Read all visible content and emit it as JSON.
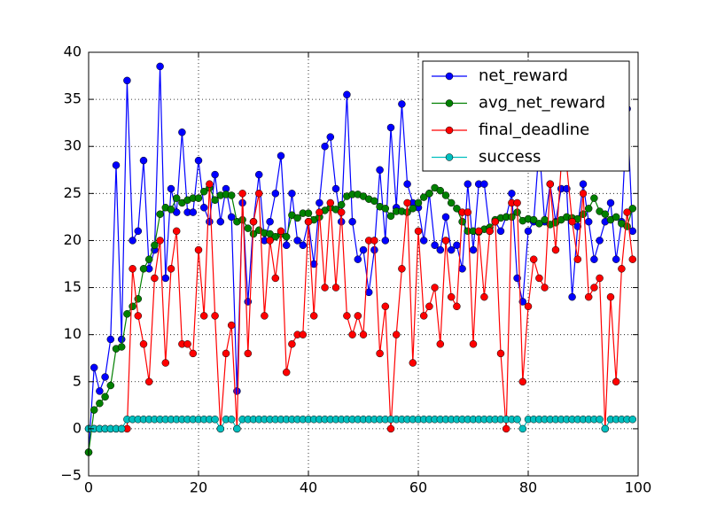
{
  "chart_data": {
    "type": "line",
    "x": [
      0,
      1,
      2,
      3,
      4,
      5,
      6,
      7,
      8,
      9,
      10,
      11,
      12,
      13,
      14,
      15,
      16,
      17,
      18,
      19,
      20,
      21,
      22,
      23,
      24,
      25,
      26,
      27,
      28,
      29,
      30,
      31,
      32,
      33,
      34,
      35,
      36,
      37,
      38,
      39,
      40,
      41,
      42,
      43,
      44,
      45,
      46,
      47,
      48,
      49,
      50,
      51,
      52,
      53,
      54,
      55,
      56,
      57,
      58,
      59,
      60,
      61,
      62,
      63,
      64,
      65,
      66,
      67,
      68,
      69,
      70,
      71,
      72,
      73,
      74,
      75,
      76,
      77,
      78,
      79,
      80,
      81,
      82,
      83,
      84,
      85,
      86,
      87,
      88,
      89,
      90,
      91,
      92,
      93,
      94,
      95,
      96,
      97,
      98,
      99
    ],
    "series": [
      {
        "name": "net_reward",
        "color": "#0000ff",
        "values": [
          -2.5,
          6.5,
          4,
          5.5,
          9.5,
          28,
          9.5,
          37,
          20,
          21,
          28.5,
          17,
          19,
          38.5,
          16,
          25.5,
          23,
          31.5,
          23,
          23,
          28.5,
          23.5,
          22,
          27,
          22,
          25.5,
          22.5,
          4,
          24,
          13.5,
          22,
          27,
          20,
          22,
          25,
          29,
          19.5,
          25,
          20,
          19.5,
          22,
          17.5,
          24,
          30,
          31,
          25.5,
          22,
          35.5,
          22,
          18,
          19,
          14.5,
          19,
          27.5,
          20,
          32,
          23.5,
          34.5,
          26,
          24,
          23.5,
          20,
          25,
          19.5,
          19,
          22.5,
          19,
          19.5,
          17,
          26,
          19,
          26,
          26,
          21,
          22,
          21,
          22.5,
          25,
          16,
          13.5,
          21,
          22,
          30,
          22,
          26,
          22,
          25.5,
          25.5,
          14,
          21.5,
          26,
          22,
          18,
          20,
          22,
          24,
          18,
          22,
          34,
          21
        ]
      },
      {
        "name": "avg_net_reward",
        "color": "#008000",
        "values": [
          -2.5,
          2,
          2.7,
          3.4,
          4.6,
          8.5,
          8.7,
          12.2,
          13,
          13.8,
          17,
          18,
          19.5,
          22.8,
          23.5,
          23.3,
          24.5,
          24,
          24.3,
          24.5,
          24.5,
          25.2,
          25.6,
          24.3,
          24.8,
          24.9,
          24.8,
          22,
          22.2,
          21.3,
          20.7,
          21.1,
          20.8,
          20.7,
          20.4,
          20.7,
          20.4,
          22.7,
          22.4,
          22.9,
          22.9,
          22.2,
          22.5,
          23.2,
          23.5,
          23.3,
          23.8,
          24.7,
          24.9,
          24.9,
          24.7,
          24.4,
          24.2,
          23.6,
          23.4,
          22.6,
          23.1,
          23.1,
          23,
          23.4,
          24,
          24.6,
          25,
          25.6,
          25.3,
          24.8,
          24,
          23.4,
          22,
          21,
          21,
          20.9,
          21.2,
          21.4,
          22.2,
          22.4,
          22.5,
          22.5,
          23,
          22.1,
          22.3,
          22.2,
          21.8,
          22.2,
          21.7,
          21.9,
          22.2,
          22.5,
          22.4,
          22.3,
          22.8,
          23.4,
          24.5,
          23.1,
          22.8,
          22.2,
          22.5,
          21.8,
          21.5,
          23.4
        ]
      },
      {
        "name": "final_deadline",
        "color": "#ff0000",
        "values": [
          0,
          0,
          0,
          0,
          0,
          0,
          0,
          0,
          17,
          12,
          9,
          5,
          16,
          20,
          7,
          17,
          21,
          9,
          9,
          8,
          19,
          12,
          26,
          12,
          0,
          8,
          11,
          0,
          25,
          8,
          22,
          25,
          12,
          20,
          16,
          21,
          6,
          9,
          10,
          10,
          22,
          12,
          23,
          15,
          24,
          15,
          23,
          12,
          10,
          12,
          10,
          20,
          20,
          8,
          13,
          0,
          10,
          17,
          24,
          7,
          21,
          12,
          13,
          15,
          9,
          20,
          14,
          13,
          23,
          23,
          9,
          21,
          14,
          21,
          22,
          8,
          0,
          24,
          24,
          5,
          13,
          18,
          16,
          15,
          26,
          19,
          28,
          28,
          22,
          18,
          25,
          14,
          15,
          16,
          0,
          14,
          5,
          17,
          23,
          18
        ]
      },
      {
        "name": "success",
        "color": "#00bfbf",
        "values": [
          0,
          0,
          0,
          0,
          0,
          0,
          0,
          1,
          1,
          1,
          1,
          1,
          1,
          1,
          1,
          1,
          1,
          1,
          1,
          1,
          1,
          1,
          1,
          1,
          0,
          1,
          1,
          0,
          1,
          1,
          1,
          1,
          1,
          1,
          1,
          1,
          1,
          1,
          1,
          1,
          1,
          1,
          1,
          1,
          1,
          1,
          1,
          1,
          1,
          1,
          1,
          1,
          1,
          1,
          1,
          1,
          1,
          1,
          1,
          1,
          1,
          1,
          1,
          1,
          1,
          1,
          1,
          1,
          1,
          1,
          1,
          1,
          1,
          1,
          1,
          1,
          1,
          1,
          1,
          0,
          1,
          1,
          1,
          1,
          1,
          1,
          1,
          1,
          1,
          1,
          1,
          1,
          1,
          1,
          0,
          1,
          1,
          1,
          1,
          1
        ]
      }
    ],
    "xlim": [
      0,
      100
    ],
    "xticks": [
      0,
      20,
      40,
      60,
      80,
      100
    ],
    "ylim": [
      -5,
      40
    ],
    "yticks": [
      {
        "value": -5,
        "label": "−5"
      },
      0,
      5,
      10,
      15,
      20,
      25,
      30,
      35,
      40
    ],
    "grid": true,
    "legend": "upper right"
  }
}
